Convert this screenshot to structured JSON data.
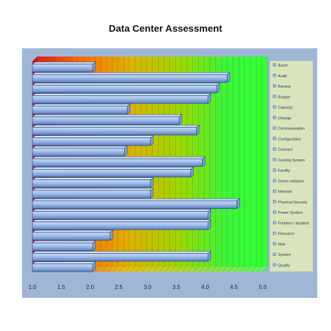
{
  "chart_data": {
    "type": "bar",
    "title": "Data Center Assessment",
    "xlim": [
      1.0,
      5.0
    ],
    "xticks": [
      "1.0",
      "1.5",
      "2.0",
      "2.5",
      "3.0",
      "3.5",
      "4.0",
      "4.5",
      "5.0"
    ],
    "series": [
      {
        "name": "Asset",
        "values": [
          2.05,
          4.38,
          4.2,
          4.05,
          2.65,
          3.55,
          3.85,
          3.05,
          2.6,
          3.95,
          3.75,
          3.05,
          3.05,
          4.55,
          4.05,
          4.05,
          2.35,
          2.05,
          4.05,
          2.05
        ]
      }
    ],
    "legend": {
      "placement": "right",
      "entries": [
        "Asset",
        "Audit",
        "Backup",
        "Budget",
        "Capacity",
        "Change",
        "Communication",
        "Configuration",
        "Contract",
        "Cooling System",
        "Facility",
        "Green Initiative",
        "Network",
        "Physical Security",
        "Power System",
        "Problem / Incident",
        "Resource",
        "Risk",
        "System",
        "Quality"
      ]
    },
    "colors": {
      "bar": "#9dbbe8",
      "bar_edge": "#2e4f86",
      "background_from": "#e01a1a",
      "background_to": "#33ff33",
      "plot_bg": "#9fb6d6"
    }
  }
}
